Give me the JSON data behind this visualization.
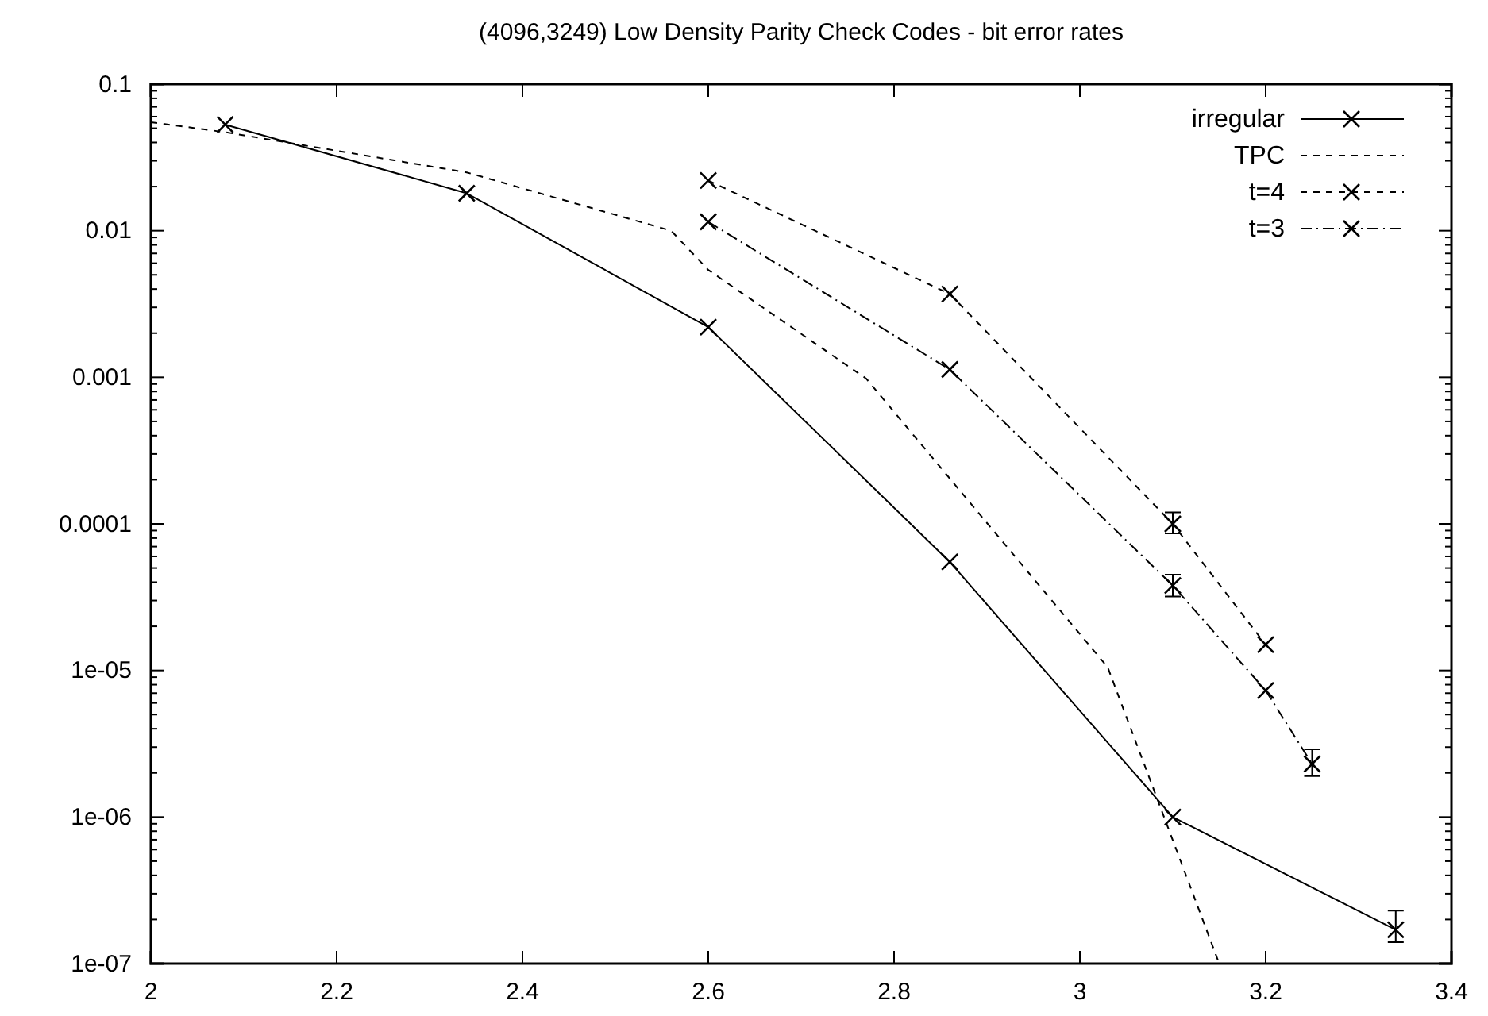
{
  "chart_data": {
    "type": "line",
    "title": "(4096,3249) Low Density Parity Check Codes - bit error rates",
    "log": "y",
    "legend": "top right",
    "grid": false,
    "xlim": [
      2,
      3.4
    ],
    "xticks": [
      2,
      2.2,
      2.4,
      2.6,
      2.8,
      3,
      3.2,
      3.4
    ],
    "ylim": [
      1e-07,
      0.1
    ],
    "yticks": [
      0.1,
      0.01,
      0.001,
      0.0001,
      {
        "value": 1e-05,
        "label": "1e-05"
      },
      {
        "value": 1e-06,
        "label": "1e-06"
      },
      {
        "value": 1e-07,
        "label": "1e-07"
      }
    ],
    "series": [
      {
        "name": "irregular",
        "color": "#000000",
        "line_style": "solid",
        "marker": "cross",
        "x": [
          2.08,
          2.34,
          2.6,
          2.86,
          3.1,
          3.34
        ],
        "values": [
          0.053,
          0.018,
          0.0022,
          5.5e-05,
          1e-06,
          1.7e-07
        ],
        "errors": [
          null,
          null,
          null,
          null,
          null,
          [
            1.4e-07,
            2.3e-07
          ]
        ]
      },
      {
        "name": "TPC",
        "color": "#000000",
        "line_style": "dashed",
        "marker": "none",
        "x": [
          2,
          2.08,
          2.34,
          2.56,
          2.6,
          2.77,
          3.03,
          3.15
        ],
        "values": [
          0.055,
          0.047,
          0.025,
          0.01,
          0.0054,
          0.00098,
          1.05e-05,
          1e-07
        ]
      },
      {
        "name": "t=4",
        "color": "#000000",
        "line_style": "dashed",
        "marker": "cross",
        "x": [
          2.6,
          2.86,
          3.1,
          3.2
        ],
        "values": [
          0.022,
          0.0037,
          0.0001,
          1.5e-05
        ],
        "errors": [
          null,
          null,
          [
            8.6e-05,
            0.00012
          ],
          null
        ]
      },
      {
        "name": "t=3",
        "color": "#000000",
        "line_style": "dashdot",
        "marker": "cross",
        "x": [
          2.6,
          2.86,
          3.1,
          3.2,
          3.25
        ],
        "values": [
          0.0115,
          0.00113,
          3.8e-05,
          7.3e-06,
          2.3e-06
        ],
        "errors": [
          null,
          null,
          [
            3.2e-05,
            4.5e-05
          ],
          null,
          [
            1.9e-06,
            2.9e-06
          ]
        ]
      }
    ]
  }
}
